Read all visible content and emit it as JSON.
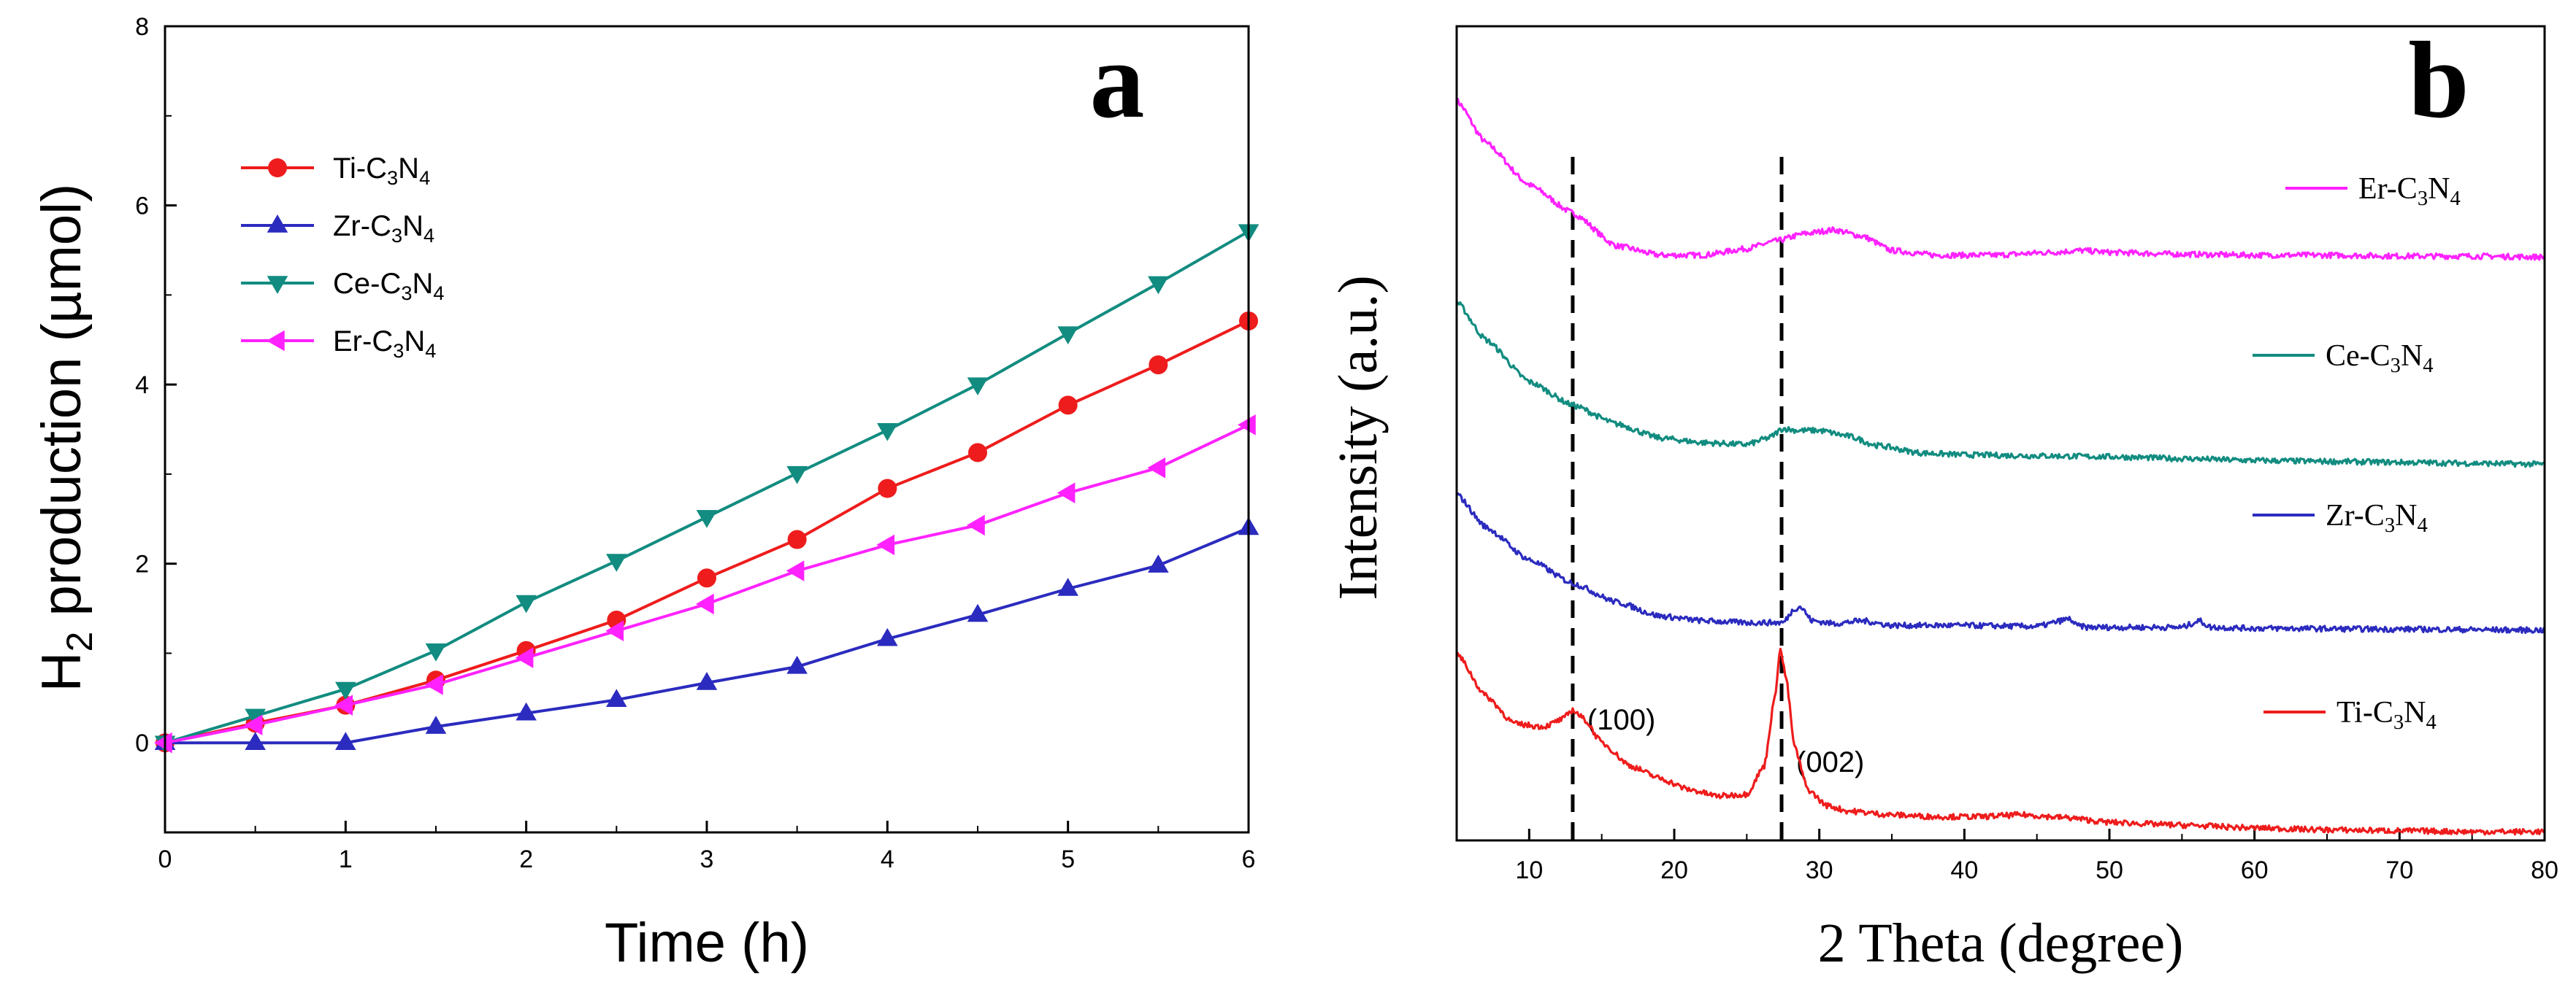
{
  "chart_data": [
    {
      "type": "line",
      "panel_label": "a",
      "title": "",
      "xlabel": "Time (h)",
      "ylabel": {
        "main": "H",
        "sub": "2",
        "rest": " production (µmol)"
      },
      "xlim": [
        0,
        6
      ],
      "ylim": [
        -1,
        8
      ],
      "xticks": [
        0,
        1,
        2,
        3,
        4,
        5,
        6
      ],
      "yticks": [
        0,
        2,
        4,
        6,
        8
      ],
      "legend_position": "top-left",
      "x": [
        0,
        0.5,
        1,
        1.5,
        2,
        2.5,
        3,
        3.5,
        4,
        4.5,
        5,
        5.5,
        6
      ],
      "series": [
        {
          "name": "Ti-C3N4",
          "label": {
            "prefix": "Ti-C",
            "s1": "3",
            "mid": "N",
            "s2": "4"
          },
          "color": "#ee1c1c",
          "marker": "circle",
          "values": [
            0,
            0.22,
            0.42,
            0.7,
            1.03,
            1.37,
            1.84,
            2.27,
            2.84,
            3.24,
            3.77,
            4.22,
            4.71
          ]
        },
        {
          "name": "Zr-C3N4",
          "label": {
            "prefix": "Zr-C",
            "s1": "3",
            "mid": "N",
            "s2": "4"
          },
          "color": "#2b2bbf",
          "marker": "triangle-up",
          "values": [
            0,
            0.0,
            0.0,
            0.18,
            0.33,
            0.48,
            0.67,
            0.85,
            1.16,
            1.43,
            1.72,
            1.98,
            2.4
          ]
        },
        {
          "name": "Ce-C3N4",
          "label": {
            "prefix": "Ce-C",
            "s1": "3",
            "mid": "N",
            "s2": "4"
          },
          "color": "#128c80",
          "marker": "triangle-down",
          "values": [
            0,
            0.3,
            0.6,
            1.03,
            1.57,
            2.03,
            2.52,
            3.01,
            3.49,
            4.0,
            4.57,
            5.13,
            5.71
          ]
        },
        {
          "name": "Er-C3N4",
          "label": {
            "prefix": "Er-C",
            "s1": "3",
            "mid": "N",
            "s2": "4"
          },
          "color": "#ff22ff",
          "marker": "triangle-left",
          "values": [
            0,
            0.2,
            0.42,
            0.65,
            0.95,
            1.25,
            1.55,
            1.92,
            2.21,
            2.43,
            2.79,
            3.07,
            3.55
          ]
        }
      ]
    },
    {
      "type": "line",
      "panel_label": "b",
      "title": "",
      "xlabel": "2 Theta (degree)",
      "ylabel": "Intensity (a.u.)",
      "xlim": [
        5,
        80
      ],
      "xticks": [
        10,
        20,
        30,
        40,
        50,
        60,
        70,
        80
      ],
      "yticks": [],
      "legend_position": "right",
      "reference_lines": [
        {
          "x": 13,
          "label": "(100)"
        },
        {
          "x": 27.4,
          "label": "(002)"
        }
      ],
      "series": [
        {
          "name": "Er-C3N4",
          "label": {
            "prefix": "Er-C",
            "s1": "3",
            "mid": "N",
            "s2": "4"
          },
          "color": "#ff22ff",
          "x": [
            5,
            7,
            10,
            13,
            16,
            19,
            22,
            25,
            27,
            29,
            31,
            33,
            35,
            38,
            42,
            46,
            48,
            50,
            55,
            60,
            65,
            70,
            75,
            80
          ],
          "values": [
            8.5,
            8.05,
            7.6,
            7.3,
            6.95,
            6.85,
            6.85,
            6.92,
            7.0,
            7.08,
            7.12,
            7.05,
            6.9,
            6.85,
            6.85,
            6.88,
            6.9,
            6.88,
            6.86,
            6.85,
            6.85,
            6.84,
            6.84,
            6.83
          ]
        },
        {
          "name": "Ce-C3N4",
          "label": {
            "prefix": "Ce-C",
            "s1": "3",
            "mid": "N",
            "s2": "4"
          },
          "color": "#128c80",
          "x": [
            5,
            7,
            10,
            13,
            16,
            19,
            22,
            25,
            26.5,
            27.5,
            28.5,
            30,
            32,
            34,
            37,
            40,
            45,
            50,
            55,
            60,
            65,
            70,
            75,
            80
          ],
          "values": [
            6.35,
            5.95,
            5.5,
            5.25,
            5.05,
            4.9,
            4.85,
            4.83,
            4.9,
            5.0,
            4.98,
            4.98,
            4.92,
            4.82,
            4.74,
            4.72,
            4.71,
            4.7,
            4.68,
            4.66,
            4.65,
            4.64,
            4.63,
            4.62
          ]
        },
        {
          "name": "Zr-C3N4",
          "label": {
            "prefix": "Zr-C",
            "s1": "3",
            "mid": "N",
            "s2": "4"
          },
          "color": "#2b2bbf",
          "x": [
            5,
            7,
            10,
            13,
            16,
            19,
            22,
            25,
            27.5,
            28.3,
            28.7,
            29.5,
            31,
            33,
            35,
            40,
            45,
            47.3,
            47.7,
            48.5,
            55,
            56.2,
            57,
            60,
            70,
            80
          ],
          "values": [
            4.3,
            3.95,
            3.6,
            3.35,
            3.15,
            3.0,
            2.95,
            2.93,
            2.93,
            3.08,
            3.1,
            2.95,
            2.92,
            2.95,
            2.9,
            2.9,
            2.89,
            2.97,
            2.9,
            2.88,
            2.88,
            2.95,
            2.88,
            2.87,
            2.86,
            2.85
          ]
        },
        {
          "name": "Ti-C3N4",
          "label": {
            "prefix": "Ti-C",
            "s1": "3",
            "mid": "N",
            "s2": "4"
          },
          "color": "#ee1c1c",
          "x": [
            5,
            7,
            9,
            11,
            12.3,
            13,
            13.8,
            15,
            17,
            19,
            21,
            23,
            25,
            26.2,
            26.9,
            27.3,
            27.7,
            28.3,
            29.2,
            30.5,
            32,
            35,
            38,
            41,
            44,
            47,
            50,
            55,
            60,
            65,
            70,
            75,
            80
          ],
          "values": [
            2.6,
            2.15,
            1.85,
            1.82,
            1.9,
            2.0,
            1.9,
            1.65,
            1.4,
            1.27,
            1.15,
            1.08,
            1.1,
            1.4,
            2.1,
            2.65,
            2.35,
            1.6,
            1.15,
            0.98,
            0.92,
            0.88,
            0.86,
            0.86,
            0.88,
            0.85,
            0.8,
            0.77,
            0.74,
            0.72,
            0.71,
            0.7,
            0.7
          ]
        }
      ]
    }
  ]
}
